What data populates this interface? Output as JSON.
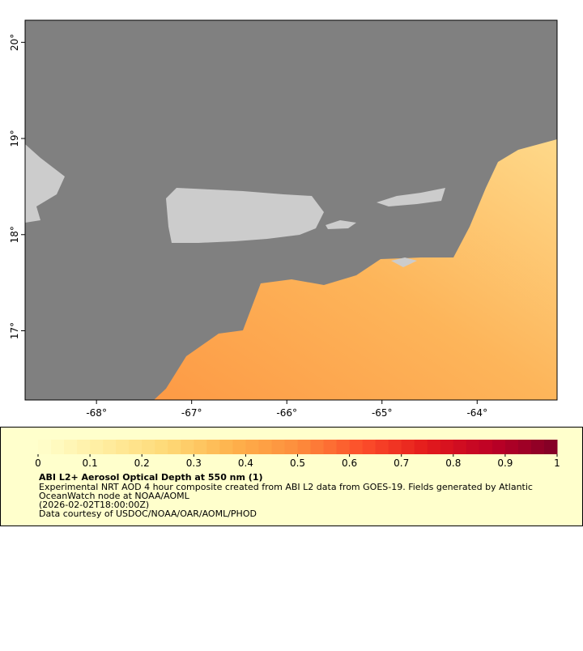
{
  "map": {
    "xlim": [
      -68.75,
      -63.16
    ],
    "ylim": [
      16.28,
      20.23
    ],
    "xticks": [
      {
        "value": -68,
        "label": "-68°"
      },
      {
        "value": -67,
        "label": "-67°"
      },
      {
        "value": -66,
        "label": "-66°"
      },
      {
        "value": -65,
        "label": "-65°"
      },
      {
        "value": -64,
        "label": "-64°"
      }
    ],
    "yticks": [
      {
        "value": 17,
        "label": "17°"
      },
      {
        "value": 18,
        "label": "18°"
      },
      {
        "value": 19,
        "label": "19°"
      },
      {
        "value": 20,
        "label": "20°"
      }
    ]
  },
  "colorbar": {
    "lim": [
      0,
      1
    ],
    "ticks": [
      0,
      0.1,
      0.2,
      0.3,
      0.4,
      0.5,
      0.6,
      0.7,
      0.8,
      0.9,
      1
    ],
    "colors": [
      "#ffffcc",
      "#ffeda0",
      "#fed976",
      "#feb24c",
      "#fd8d3c",
      "#fc4e2a",
      "#e31a1c",
      "#bd0026",
      "#800026"
    ]
  },
  "legend": {
    "title": "ABI L2+ Aerosol Optical Depth at 550 nm (1)",
    "lines": [
      "Experimental NRT AOD 4 hour composite created from ABI L2 data from GOES-19. Fields generated by Atlantic",
      "OceanWatch node at NOAA/AOML",
      "(2026-02-02T18:00:00Z)",
      "Data courtesy of USDOC/NOAA/OAR/AOML/PHOD"
    ]
  }
}
